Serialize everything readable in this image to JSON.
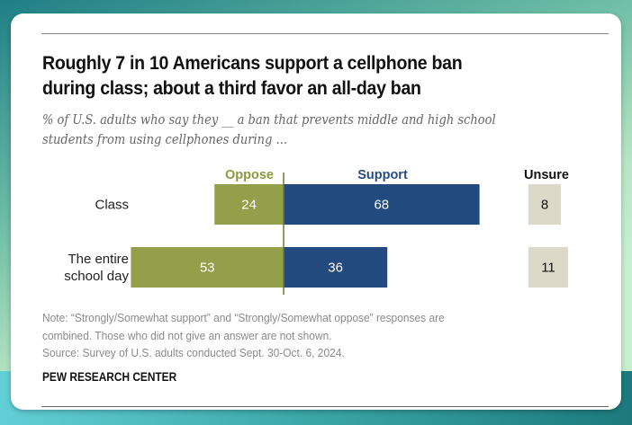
{
  "title": "Roughly 7 in 10 Americans support a cellphone ban during class; about a third favor an all-day ban",
  "title_lines": [
    "Roughly 7 in 10 Americans support a cellphone ban",
    "during class; about a third favor an all-day ban"
  ],
  "subtitle_lines": [
    "% of U.S. adults who say they __ a ban that prevents middle and high school",
    "students from using cellphones during ..."
  ],
  "notes": {
    "note_lines": [
      "Note: “Strongly/Somewhat support” and “Strongly/Somewhat oppose” responses are",
      "combined. Those who did not give an answer are not shown."
    ],
    "source": "Source: Survey of U.S. adults conducted Sept. 30-Oct. 6, 2024."
  },
  "brand": "PEW RESEARCH CENTER",
  "colors": {
    "oppose": "#949f4a",
    "support": "#224a7e",
    "unsure": "#dcd9c8",
    "oppose_label": "#8a9a3e",
    "support_label": "#2a4b82"
  },
  "chart_data": {
    "type": "bar",
    "orientation": "horizontal-diverging",
    "title": "Roughly 7 in 10 Americans support a cellphone ban during class; about a third favor an all-day ban",
    "categories": [
      "Class",
      "The entire school day"
    ],
    "category_label_lines": [
      [
        "Class"
      ],
      [
        "The entire",
        "school day"
      ]
    ],
    "series": [
      {
        "name": "Oppose",
        "values": [
          24,
          53
        ],
        "direction": "left"
      },
      {
        "name": "Support",
        "values": [
          68,
          36
        ],
        "direction": "right"
      },
      {
        "name": "Unsure",
        "values": [
          8,
          11
        ],
        "direction": "separate-column"
      }
    ],
    "xlabel": "",
    "ylabel": "",
    "grid": false,
    "legend": "column headers above bars"
  }
}
